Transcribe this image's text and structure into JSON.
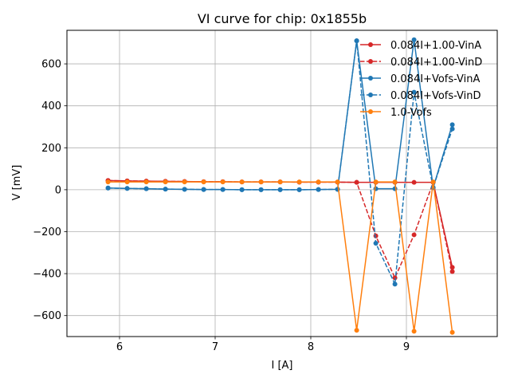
{
  "chart_data": {
    "type": "line",
    "title": "VI curve for chip: 0x1855b",
    "xlabel": "I [A]",
    "ylabel": "V [mV]",
    "xlim": [
      5.45,
      9.95
    ],
    "ylim": [
      -700,
      760
    ],
    "xticks": [
      6,
      7,
      8,
      9
    ],
    "yticks": [
      -600,
      -400,
      -200,
      0,
      200,
      400,
      600
    ],
    "xtick_labels": [
      "6",
      "7",
      "8",
      "9"
    ],
    "ytick_labels": [
      "−600",
      "−400",
      "−200",
      "0",
      "200",
      "400",
      "600"
    ],
    "grid": true,
    "legend_position": "top-right",
    "x": [
      5.88,
      6.08,
      6.28,
      6.48,
      6.68,
      6.88,
      7.08,
      7.28,
      7.48,
      7.68,
      7.88,
      8.08,
      8.28,
      8.48,
      8.68,
      8.88,
      9.08,
      9.28,
      9.48
    ],
    "series": [
      {
        "name": "0.084I+1.00-VinA",
        "color": "#d62728",
        "dash": "solid",
        "values": [
          44,
          42,
          41,
          40,
          39,
          38,
          38,
          37,
          37,
          37,
          36,
          36,
          36,
          35,
          35,
          35,
          35,
          35,
          -370
        ]
      },
      {
        "name": "0.084I+1.00-VinD",
        "color": "#d62728",
        "dash": "dashed",
        "values": [
          44,
          42,
          41,
          40,
          39,
          38,
          38,
          37,
          37,
          37,
          36,
          36,
          36,
          35,
          -220,
          -420,
          -215,
          35,
          -390
        ]
      },
      {
        "name": "0.084I+Vofs-VinA",
        "color": "#1f77b4",
        "dash": "solid",
        "values": [
          8,
          6,
          5,
          3,
          2,
          1,
          1,
          0,
          0,
          0,
          0,
          1,
          2,
          710,
          5,
          5,
          715,
          10,
          310
        ]
      },
      {
        "name": "0.084I+Vofs-VinD",
        "color": "#1f77b4",
        "dash": "dashed",
        "values": [
          8,
          6,
          5,
          3,
          2,
          1,
          1,
          0,
          0,
          0,
          0,
          1,
          2,
          710,
          -255,
          -450,
          465,
          10,
          290
        ]
      },
      {
        "name": "1.0-Vofs",
        "color": "#ff7f0e",
        "dash": "solid",
        "values": [
          37,
          37,
          37,
          37,
          37,
          37,
          37,
          37,
          37,
          37,
          37,
          37,
          37,
          -670,
          37,
          37,
          -675,
          37,
          -680
        ]
      }
    ]
  }
}
